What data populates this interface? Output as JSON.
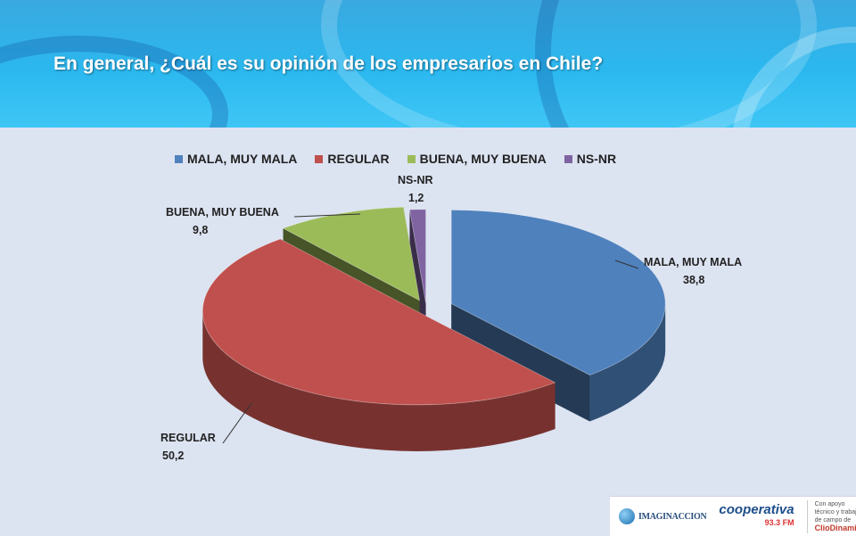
{
  "header": {
    "title": "En general, ¿Cuál es su opinión de los empresarios en Chile?"
  },
  "chart_data": {
    "type": "pie",
    "style": "3d-exploded",
    "categories": [
      "MALA, MUY MALA",
      "REGULAR",
      "BUENA, MUY BUENA",
      "NS-NR"
    ],
    "values": [
      38.8,
      50.2,
      9.8,
      1.2
    ],
    "value_labels": [
      "38,8",
      "50,2",
      "9,8",
      "1,2"
    ],
    "colors": [
      "#4f81bd",
      "#c0504d",
      "#9bbb59",
      "#8064a2"
    ],
    "legend_position": "top"
  },
  "logos": {
    "imaginaccion": "IMAGINACCION",
    "cooperativa": "cooperativa",
    "cooperativa_freq": "93.3 FM",
    "clio_note": "Con apoyo técnico y trabajo de campo de",
    "clio": "ClioDinamica"
  }
}
